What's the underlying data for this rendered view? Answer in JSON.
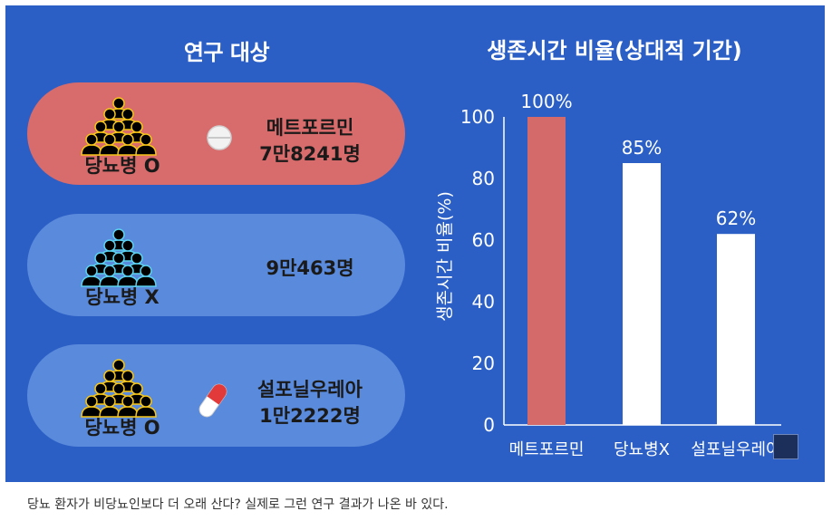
{
  "left_panel": {
    "title": "연구 대상",
    "groups": [
      {
        "label": "당뇨병 O",
        "text_line1": "메트포르민",
        "text_line2": "7만8241명",
        "icon": "pill-icon"
      },
      {
        "label": "당뇨병 X",
        "text_line1": "9만463명",
        "text_line2": "",
        "icon": ""
      },
      {
        "label": "당뇨병 O",
        "text_line1": "설포닐우레아",
        "text_line2": "1만2222명",
        "icon": "capsule-icon"
      }
    ]
  },
  "caption": "당뇨 환자가 비당뇨인보다 더 오래 산다? 실제로 그런 연구 결과가 나온 바 있다.",
  "chart_data": {
    "type": "bar",
    "title": "생존시간 비율(상대적 기간)",
    "ylabel": "생존시간 비율(%)",
    "categories": [
      "메트포르민",
      "당뇨병X",
      "설포닐우레아"
    ],
    "values": [
      100,
      85,
      62
    ],
    "data_labels": [
      "100%",
      "85%",
      "62%"
    ],
    "bar_colors": [
      "#d56a6a",
      "#ffffff",
      "#ffffff"
    ],
    "ylim": [
      0,
      100
    ],
    "yticks": [
      0,
      20,
      40,
      60,
      80,
      100
    ],
    "grid": false
  },
  "colors": {
    "panel_bg": "#2b5fc6",
    "pill_group_red": "#d86b6b",
    "pill_group_blue": "#5a8adb"
  }
}
